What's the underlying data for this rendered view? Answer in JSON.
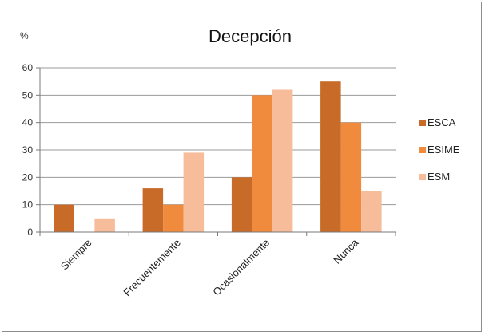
{
  "chart_data": {
    "type": "bar",
    "title": "Decepción",
    "ylabel": "%",
    "xlabel": "",
    "categories": [
      "Siempre",
      "Frecuentemente",
      "Ocasionalmente",
      "Nunca"
    ],
    "series": [
      {
        "name": "ESCA",
        "values": [
          10,
          16,
          20,
          55
        ],
        "color": "#c86a28"
      },
      {
        "name": "ESIME",
        "values": [
          0,
          10,
          50,
          40
        ],
        "color": "#f08a3c"
      },
      {
        "name": "ESM",
        "values": [
          5,
          29,
          52,
          15
        ],
        "color": "#f7bc9a"
      }
    ],
    "ylim": [
      0,
      60
    ],
    "yticks": [
      0,
      10,
      20,
      30,
      40,
      50,
      60
    ],
    "grid": true,
    "legend_position": "right"
  }
}
